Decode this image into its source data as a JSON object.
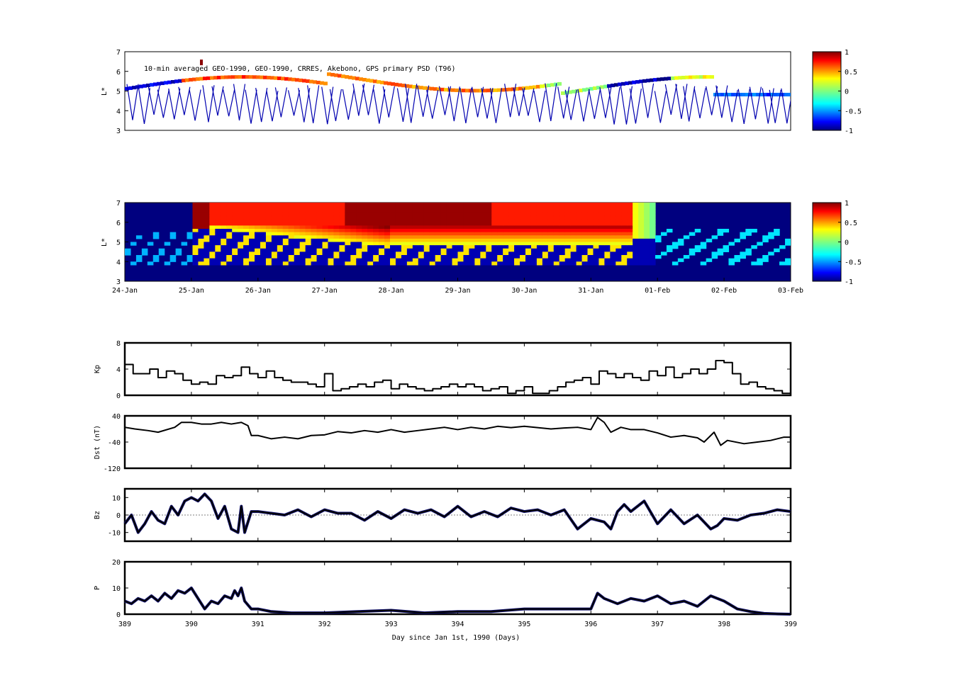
{
  "colors": {
    "navy": "#00007f",
    "line": "#000000",
    "dark_blue": "#0a0a6e",
    "dark_red": "#7f0000"
  },
  "chart_data": [
    {
      "id": "psd_observed",
      "type": "heatmap",
      "annotation": "10-min averaged GEO-1990, GEO-1990, CRRES, Akebono, GPS  primary PSD (T96)",
      "ylabel": "L*",
      "ylim": [
        3,
        7
      ],
      "yticks": [
        "3",
        "4",
        "5",
        "6",
        "7"
      ],
      "xlim": [
        389,
        399
      ],
      "colorbar": {
        "ticks": [
          "1",
          "0.5",
          "0",
          "-0.5",
          "-1"
        ],
        "range": [
          -1,
          1
        ],
        "colormap": "jet"
      }
    },
    {
      "id": "psd_model",
      "type": "heatmap",
      "ylabel": "L*",
      "ylim": [
        3,
        7
      ],
      "yticks": [
        "3",
        "4",
        "5",
        "6",
        "7"
      ],
      "xticklabels": [
        "24-Jan",
        "25-Jan",
        "26-Jan",
        "27-Jan",
        "28-Jan",
        "29-Jan",
        "30-Jan",
        "31-Jan",
        "01-Feb",
        "02-Feb",
        "03-Feb"
      ],
      "colorbar": {
        "ticks": [
          "1",
          "0.5",
          "0",
          "-0.5",
          "-1"
        ],
        "range": [
          -1,
          1
        ],
        "colormap": "jet"
      }
    },
    {
      "id": "kp",
      "type": "line",
      "ylabel": "Kp",
      "ylim": [
        0,
        8
      ],
      "yticks": [
        "0",
        "4",
        "8"
      ],
      "x": [
        389,
        389.12,
        389.125,
        389.25,
        389.375,
        389.5,
        389.625,
        389.75,
        389.875,
        390,
        390.125,
        390.25,
        390.375,
        390.5,
        390.625,
        390.75,
        390.875,
        391,
        391.125,
        391.25,
        391.375,
        391.5,
        391.625,
        391.75,
        391.875,
        392,
        392.125,
        392.25,
        392.375,
        392.5,
        392.625,
        392.75,
        392.875,
        393,
        393.125,
        393.25,
        393.375,
        393.5,
        393.625,
        393.75,
        393.875,
        394,
        394.125,
        394.25,
        394.375,
        394.5,
        394.625,
        394.75,
        394.875,
        395,
        395.125,
        395.25,
        395.375,
        395.5,
        395.625,
        395.75,
        395.875,
        396,
        396.125,
        396.25,
        396.375,
        396.5,
        396.625,
        396.75,
        396.875,
        397,
        397.125,
        397.25,
        397.375,
        397.5,
        397.625,
        397.75,
        397.875,
        398,
        398.125,
        398.25,
        398.375,
        398.5,
        398.625,
        398.75,
        398.875,
        399
      ],
      "values": [
        4.7,
        4.7,
        3.3,
        3.3,
        4,
        2.7,
        3.7,
        3.3,
        2.3,
        1.7,
        2,
        1.7,
        3,
        2.7,
        3,
        4.3,
        3.3,
        2.7,
        3.7,
        2.7,
        2.3,
        2,
        2,
        1.7,
        1.3,
        3.3,
        0.7,
        1,
        1.3,
        1.7,
        1.3,
        2,
        2.3,
        1,
        1.7,
        1.3,
        1,
        0.7,
        1,
        1.3,
        1.7,
        1.3,
        1.7,
        1.3,
        0.7,
        1,
        1.3,
        0.3,
        0.7,
        1.3,
        0.3,
        0.3,
        0.7,
        1.3,
        2,
        2.3,
        2.7,
        1.7,
        3.7,
        3.3,
        2.7,
        3.3,
        2.7,
        2.3,
        3.7,
        3,
        4.3,
        2.7,
        3.3,
        4,
        3.3,
        4,
        5.3,
        5,
        3.3,
        1.7,
        2,
        1.3,
        1,
        0.7,
        0.3,
        0.7
      ]
    },
    {
      "id": "dst",
      "type": "line",
      "ylabel": "Dst (nT)",
      "ylim": [
        -120,
        40
      ],
      "yticks": [
        "-120",
        "-40",
        "40"
      ],
      "x": [
        389,
        389.15,
        389.35,
        389.5,
        389.75,
        389.85,
        390,
        390.15,
        390.3,
        390.45,
        390.6,
        390.75,
        390.85,
        390.9,
        391,
        391.2,
        391.4,
        391.6,
        391.8,
        392,
        392.2,
        392.4,
        392.6,
        392.8,
        393,
        393.2,
        393.4,
        393.6,
        393.8,
        394,
        394.2,
        394.4,
        394.6,
        394.8,
        395,
        395.2,
        395.4,
        395.6,
        395.8,
        396,
        396.1,
        396.2,
        396.3,
        396.45,
        396.6,
        396.8,
        397,
        397.2,
        397.4,
        397.6,
        397.7,
        397.85,
        397.95,
        398.05,
        398.3,
        398.5,
        398.7,
        398.9,
        399
      ],
      "values": [
        5,
        0,
        -5,
        -10,
        5,
        20,
        20,
        15,
        15,
        20,
        15,
        20,
        10,
        -20,
        -20,
        -30,
        -25,
        -30,
        -20,
        -18,
        -8,
        -12,
        -5,
        -10,
        -2,
        -10,
        -5,
        0,
        5,
        -2,
        5,
        0,
        8,
        4,
        8,
        4,
        0,
        3,
        5,
        -2,
        35,
        20,
        -10,
        5,
        -2,
        -2,
        -12,
        -25,
        -20,
        -27,
        -40,
        -10,
        -50,
        -35,
        -45,
        -40,
        -35,
        -25,
        -25
      ]
    },
    {
      "id": "bz",
      "type": "line",
      "ylabel": "Bz",
      "ylim": [
        -15,
        15
      ],
      "yticks": [
        "-10",
        "0",
        "10"
      ],
      "x": [
        389,
        389.1,
        389.2,
        389.3,
        389.4,
        389.5,
        389.6,
        389.7,
        389.8,
        389.9,
        390,
        390.1,
        390.2,
        390.3,
        390.4,
        390.5,
        390.6,
        390.7,
        390.75,
        390.8,
        390.9,
        391,
        391.2,
        391.4,
        391.6,
        391.8,
        392,
        392.2,
        392.4,
        392.6,
        392.8,
        393,
        393.2,
        393.4,
        393.6,
        393.8,
        394,
        394.2,
        394.4,
        394.6,
        394.8,
        395,
        395.2,
        395.4,
        395.6,
        395.8,
        396,
        396.2,
        396.3,
        396.4,
        396.5,
        396.6,
        396.8,
        397,
        397.2,
        397.4,
        397.6,
        397.8,
        397.9,
        398,
        398.2,
        398.4,
        398.6,
        398.8,
        399
      ],
      "values": [
        -5,
        0,
        -10,
        -5,
        2,
        -3,
        -5,
        5,
        0,
        8,
        10,
        8,
        12,
        8,
        -2,
        5,
        -8,
        -10,
        5,
        -10,
        2,
        2,
        1,
        0,
        3,
        -1,
        3,
        1,
        1,
        -3,
        2,
        -2,
        3,
        1,
        3,
        -1,
        5,
        -1,
        2,
        -1,
        4,
        2,
        3,
        0,
        3,
        -8,
        -2,
        -4,
        -8,
        2,
        6,
        2,
        8,
        -5,
        3,
        -5,
        0,
        -8,
        -6,
        -2,
        -3,
        0,
        1,
        3,
        2
      ]
    },
    {
      "id": "p",
      "type": "line",
      "ylabel": "P",
      "xlabel": "Day since Jan 1st, 1990 (Days)",
      "ylim": [
        0,
        20
      ],
      "yticks": [
        "0",
        "10",
        "20"
      ],
      "xticklabels": [
        "389",
        "390",
        "391",
        "392",
        "393",
        "394",
        "395",
        "396",
        "397",
        "398",
        "399"
      ],
      "x": [
        389,
        389.1,
        389.2,
        389.3,
        389.4,
        389.5,
        389.6,
        389.7,
        389.8,
        389.9,
        390,
        390.1,
        390.2,
        390.3,
        390.4,
        390.5,
        390.6,
        390.65,
        390.7,
        390.75,
        390.8,
        390.9,
        391,
        391.2,
        391.5,
        392,
        392.5,
        393,
        393.5,
        394,
        394.5,
        395,
        395.5,
        395.8,
        396,
        396.1,
        396.2,
        396.4,
        396.6,
        396.8,
        397,
        397.2,
        397.4,
        397.6,
        397.8,
        398,
        398.2,
        398.4,
        398.6,
        398.8,
        399
      ],
      "values": [
        5,
        4,
        6,
        5,
        7,
        5,
        8,
        6,
        9,
        8,
        10,
        6,
        2,
        5,
        4,
        7,
        6,
        9,
        7,
        10,
        5,
        2,
        2,
        1,
        0.5,
        0.5,
        1,
        1.5,
        0.5,
        1,
        1,
        2,
        2,
        2,
        2,
        8,
        6,
        4,
        6,
        5,
        7,
        4,
        5,
        3,
        7,
        5,
        2,
        1,
        0.3,
        0.1,
        0
      ]
    },
    {
      "id": "date_labels",
      "type": "table",
      "xlabel": "Day since Jan 1st, 1990 (Days)"
    }
  ]
}
